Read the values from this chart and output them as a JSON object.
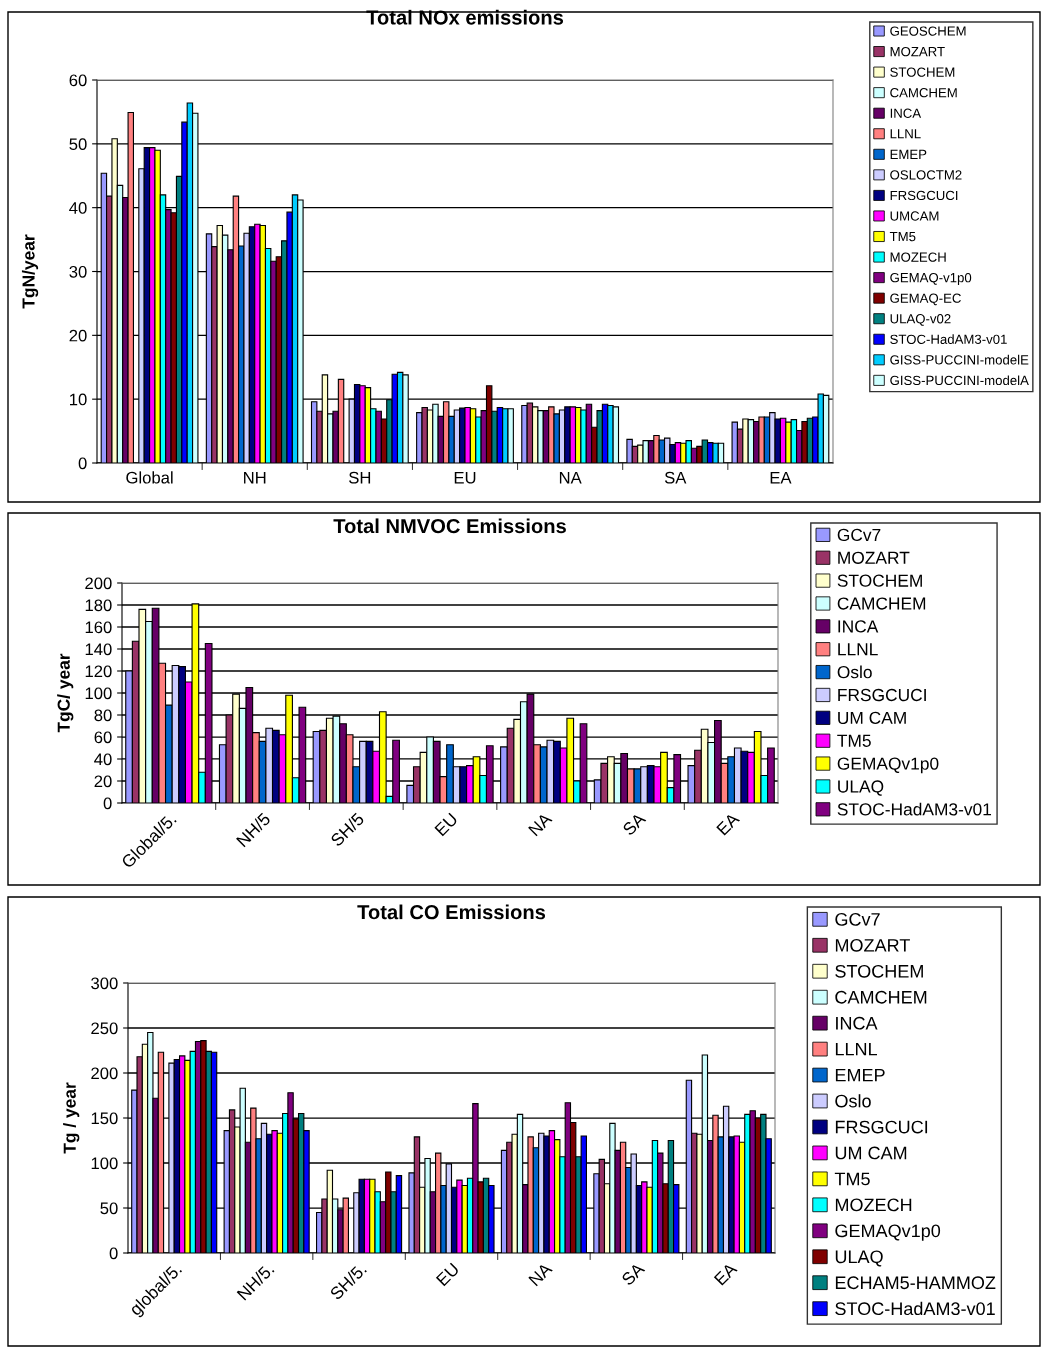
{
  "chart_data": [
    {
      "type": "bar",
      "title": "Total NOx emissions",
      "ylabel": "TgN/year",
      "categories": [
        "Global",
        "NH",
        "SH",
        "EU",
        "NA",
        "SA",
        "EA"
      ],
      "ylim": [
        0,
        60
      ],
      "yticks": [
        0,
        10,
        20,
        30,
        40,
        50,
        60
      ],
      "grid": "y",
      "legend": "right",
      "series": [
        {
          "name": "GEOSCHEM",
          "color": "#9999ff",
          "values": [
            45.4,
            35.9,
            9.6,
            7.9,
            9.0,
            3.7,
            6.4
          ]
        },
        {
          "name": "MOZART",
          "color": "#993366",
          "values": [
            41.8,
            33.9,
            8.1,
            8.7,
            9.4,
            2.6,
            5.3
          ]
        },
        {
          "name": "STOCHEM",
          "color": "#ffffcc",
          "values": [
            50.8,
            37.2,
            13.8,
            8.3,
            8.8,
            2.8,
            6.9
          ]
        },
        {
          "name": "CAMCHEM",
          "color": "#ccffff",
          "values": [
            43.5,
            35.7,
            7.7,
            9.2,
            8.2,
            3.5,
            6.8
          ]
        },
        {
          "name": "INCA",
          "color": "#660066",
          "values": [
            41.6,
            33.4,
            8.1,
            7.3,
            8.2,
            3.5,
            6.5
          ]
        },
        {
          "name": "LLNL",
          "color": "#ff8080",
          "values": [
            54.9,
            41.8,
            13.1,
            9.6,
            8.8,
            4.3,
            7.2
          ]
        },
        {
          "name": "EMEP",
          "color": "#0066cc",
          "values": [
            null,
            34.0,
            null,
            7.3,
            7.7,
            3.6,
            7.2
          ]
        },
        {
          "name": "OSLOCTM2",
          "color": "#ccccff",
          "values": [
            46.1,
            36.0,
            10.0,
            8.3,
            8.3,
            3.9,
            7.9
          ]
        },
        {
          "name": "FRSGCUCI",
          "color": "#000080",
          "values": [
            49.4,
            37.0,
            12.3,
            8.6,
            8.8,
            2.9,
            6.9
          ]
        },
        {
          "name": "UMCAM",
          "color": "#ff00ff",
          "values": [
            49.4,
            37.4,
            12.1,
            8.7,
            8.8,
            3.2,
            7.0
          ]
        },
        {
          "name": "TM5",
          "color": "#ffff00",
          "values": [
            49.0,
            37.2,
            11.8,
            8.5,
            8.7,
            3.1,
            6.4
          ]
        },
        {
          "name": "MOZECH",
          "color": "#00ffff",
          "values": [
            42.0,
            33.6,
            8.5,
            7.2,
            8.3,
            3.5,
            6.8
          ]
        },
        {
          "name": "GEMAQ-v1p0",
          "color": "#800080",
          "values": [
            39.7,
            31.6,
            8.1,
            8.2,
            9.2,
            2.3,
            5.1
          ]
        },
        {
          "name": "GEMAQ-EC",
          "color": "#800000",
          "values": [
            39.2,
            32.3,
            6.9,
            12.1,
            5.6,
            2.6,
            6.5
          ]
        },
        {
          "name": "ULAQ-v02",
          "color": "#008080",
          "values": [
            44.9,
            34.8,
            9.9,
            8.1,
            8.2,
            3.6,
            7.0
          ]
        },
        {
          "name": "STOC-HadAM3-v01",
          "color": "#0000ff",
          "values": [
            53.4,
            39.3,
            13.9,
            8.7,
            9.2,
            3.2,
            7.2
          ]
        },
        {
          "name": "GISS-PUCCINI-modelE",
          "color": "#00ccff",
          "values": [
            56.4,
            42.0,
            14.2,
            8.5,
            9.0,
            3.1,
            10.8
          ]
        },
        {
          "name": "GISS-PUCCINI-modelA",
          "color": "#ccffff",
          "values": [
            54.8,
            41.2,
            13.8,
            8.5,
            8.8,
            3.1,
            10.6
          ]
        }
      ]
    },
    {
      "type": "bar",
      "title": "Total NMVOC Emissions",
      "ylabel": "TgC/ year",
      "categories": [
        "Global/5.",
        "NH/5",
        "SH/5",
        "EU",
        "NA",
        "SA",
        "EA"
      ],
      "ylim": [
        0,
        200
      ],
      "yticks": [
        0,
        20,
        40,
        60,
        80,
        100,
        120,
        140,
        160,
        180,
        200
      ],
      "grid": "y",
      "legend": "right",
      "series": [
        {
          "name": "GCv7",
          "color": "#9999ff",
          "values": [
            120,
            53,
            65,
            16,
            51,
            21,
            34
          ]
        },
        {
          "name": "MOZART",
          "color": "#993366",
          "values": [
            147,
            80,
            66,
            33,
            68,
            36,
            48
          ]
        },
        {
          "name": "STOCHEM",
          "color": "#ffffcc",
          "values": [
            176,
            99,
            77,
            46,
            76,
            42,
            67
          ]
        },
        {
          "name": "CAMCHEM",
          "color": "#ccffff",
          "values": [
            165,
            86,
            79,
            60,
            92,
            36,
            55
          ]
        },
        {
          "name": "INCA",
          "color": "#660066",
          "values": [
            177,
            105,
            72,
            56,
            99,
            45,
            75
          ]
        },
        {
          "name": "LLNL",
          "color": "#ff8080",
          "values": [
            127,
            64,
            62,
            24,
            53,
            31,
            36
          ]
        },
        {
          "name": "Oslo",
          "color": "#0066cc",
          "values": [
            89,
            56,
            33,
            53,
            51,
            31,
            42
          ]
        },
        {
          "name": "FRSGCUCI",
          "color": "#ccccff",
          "values": [
            125,
            68,
            56,
            33,
            57,
            33,
            50
          ]
        },
        {
          "name": "UM CAM",
          "color": "#000080",
          "values": [
            124,
            66,
            56,
            33,
            56,
            34,
            47
          ]
        },
        {
          "name": "TM5",
          "color": "#ff00ff",
          "values": [
            110,
            62,
            47,
            34,
            50,
            33,
            46
          ]
        },
        {
          "name": "GEMAQv1p0",
          "color": "#ffff00",
          "values": [
            181,
            98,
            83,
            42,
            77,
            46,
            65
          ]
        },
        {
          "name": "ULAQ",
          "color": "#00ffff",
          "values": [
            28,
            23,
            6,
            25,
            20,
            14,
            25
          ]
        },
        {
          "name": "STOC-HadAM3-v01",
          "color": "#800080",
          "values": [
            145,
            87,
            57,
            52,
            72,
            44,
            50
          ]
        }
      ]
    },
    {
      "type": "bar",
      "title": "Total CO Emissions",
      "ylabel": "Tg / year",
      "categories": [
        "global/5.",
        "NH/5.",
        "SH/5.",
        "EU",
        "NA",
        "SA",
        "EA"
      ],
      "ylim": [
        0,
        300
      ],
      "yticks": [
        0,
        50,
        100,
        150,
        200,
        250,
        300
      ],
      "grid": "y",
      "legend": "right",
      "series": [
        {
          "name": "GCv7",
          "color": "#9999ff",
          "values": [
            181,
            136,
            45,
            89,
            114,
            88,
            192
          ]
        },
        {
          "name": "MOZART",
          "color": "#993366",
          "values": [
            218,
            159,
            60,
            129,
            123,
            104,
            133
          ]
        },
        {
          "name": "STOCHEM",
          "color": "#ffffcc",
          "values": [
            232,
            140,
            92,
            73,
            132,
            77,
            132
          ]
        },
        {
          "name": "CAMCHEM",
          "color": "#ccffff",
          "values": [
            245,
            183,
            60,
            105,
            154,
            144,
            220
          ]
        },
        {
          "name": "INCA",
          "color": "#660066",
          "values": [
            172,
            123,
            48,
            68,
            76,
            114,
            125
          ]
        },
        {
          "name": "LLNL",
          "color": "#ff8080",
          "values": [
            223,
            161,
            61,
            111,
            129,
            123,
            153
          ]
        },
        {
          "name": "EMEP",
          "color": "#0066cc",
          "values": [
            null,
            127,
            null,
            75,
            117,
            95,
            129
          ]
        },
        {
          "name": "Oslo",
          "color": "#ccccff",
          "values": [
            211,
            144,
            67,
            99,
            133,
            110,
            163
          ]
        },
        {
          "name": "FRSGCUCI",
          "color": "#000080",
          "values": [
            215,
            132,
            82,
            73,
            130,
            75,
            129
          ]
        },
        {
          "name": "UM CAM",
          "color": "#ff00ff",
          "values": [
            219,
            136,
            82,
            81,
            136,
            79,
            130
          ]
        },
        {
          "name": "TM5",
          "color": "#ffff00",
          "values": [
            214,
            133,
            82,
            75,
            126,
            73,
            123
          ]
        },
        {
          "name": "MOZECH",
          "color": "#00ffff",
          "values": [
            224,
            155,
            68,
            83,
            107,
            125,
            154
          ]
        },
        {
          "name": "GEMAQv1p0",
          "color": "#800080",
          "values": [
            235,
            178,
            57,
            166,
            167,
            111,
            158
          ]
        },
        {
          "name": "ULAQ",
          "color": "#800000",
          "values": [
            236,
            149,
            90,
            79,
            145,
            77,
            150
          ]
        },
        {
          "name": "ECHAM5-HAMMOZ",
          "color": "#008080",
          "values": [
            224,
            155,
            68,
            83,
            107,
            125,
            154
          ]
        },
        {
          "name": "STOC-HadAM3-v01",
          "color": "#0000ff",
          "values": [
            223,
            136,
            86,
            75,
            130,
            76,
            127
          ]
        }
      ]
    }
  ]
}
